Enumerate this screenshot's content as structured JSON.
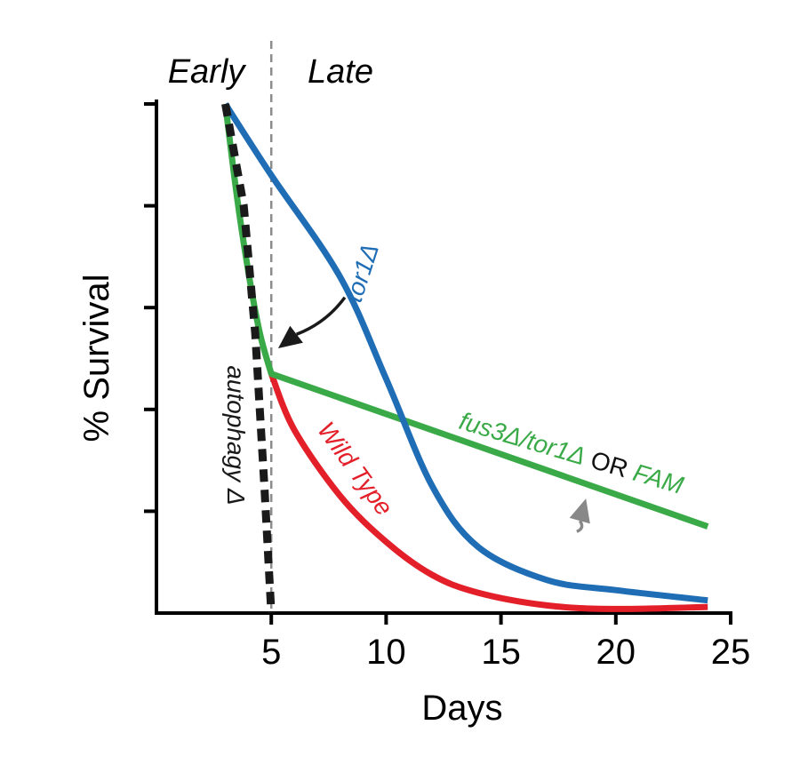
{
  "chart_data": {
    "type": "line",
    "title": "",
    "xlabel": "Days",
    "ylabel": "% Survival",
    "xlim": [
      0,
      25
    ],
    "ylim": [
      0,
      100
    ],
    "x_ticks": [
      5,
      10,
      15,
      20,
      25
    ],
    "x_tick_labels": [
      "5",
      "10",
      "15",
      "20",
      "25"
    ],
    "y_ticks": [
      20,
      40,
      60,
      80,
      100
    ],
    "grid": false,
    "phases": {
      "early_label": "Early",
      "late_label": "Late",
      "boundary_day": 5
    },
    "series": [
      {
        "name": "tor1Δ",
        "label": "tor1Δ",
        "color": "#1f6db5",
        "style": "solid",
        "x": [
          3,
          5,
          8,
          10,
          12,
          14,
          17,
          20,
          24
        ],
        "y": [
          100,
          86,
          66,
          46,
          25,
          13,
          6.5,
          4.5,
          2.5
        ]
      },
      {
        "name": "fus3Δ/tor1Δ OR FAM",
        "label_parts": [
          "fus3Δ/tor1Δ",
          " OR ",
          "FAM"
        ],
        "color": "#3aaa48",
        "style": "solid",
        "x": [
          3,
          3.5,
          4,
          4.5,
          5,
          24
        ],
        "y": [
          100,
          82,
          67,
          55,
          47,
          17
        ]
      },
      {
        "name": "Wild Type",
        "label": "Wild Type",
        "color": "#e3202a",
        "style": "solid",
        "x": [
          5,
          6,
          8,
          10,
          12,
          14,
          17,
          20,
          24
        ],
        "y": [
          47,
          36,
          23,
          14,
          7.5,
          4,
          1.5,
          0.8,
          1.2
        ]
      },
      {
        "name": "autophagy Δ",
        "label": "autophagy Δ",
        "color": "#1a1a1a",
        "style": "dashed",
        "x": [
          3,
          3.8,
          4.3,
          4.7,
          5
        ],
        "y": [
          100,
          80,
          55,
          25,
          0
        ]
      }
    ],
    "annotations": [
      {
        "type": "arrow",
        "color": "#1a1a1a",
        "from": [
          8.2,
          62
        ],
        "to": [
          5.3,
          52
        ]
      },
      {
        "type": "arrow",
        "color": "#888888",
        "from": [
          18.3,
          16
        ],
        "to": [
          18.7,
          22.5
        ]
      }
    ]
  }
}
